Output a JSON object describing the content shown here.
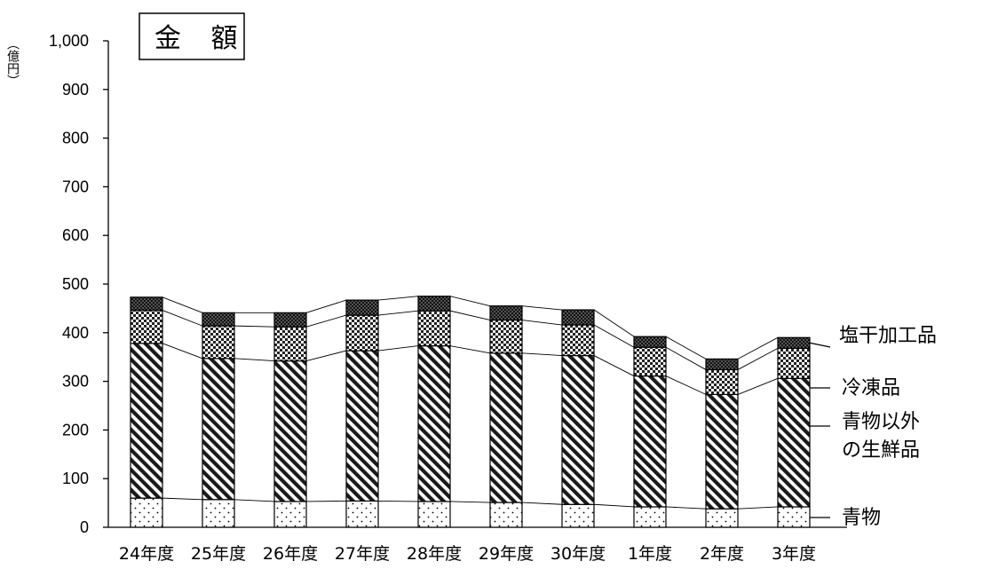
{
  "chart_data": {
    "type": "bar",
    "stacked": true,
    "title": "金 額",
    "ylabel": "（億円）",
    "ylim": [
      0,
      1000
    ],
    "ytick_step": 100,
    "ytick_labels": [
      "0",
      "100",
      "200",
      "300",
      "400",
      "500",
      "600",
      "700",
      "800",
      "900",
      "1,000"
    ],
    "categories": [
      "24年度",
      "25年度",
      "26年度",
      "27年度",
      "28年度",
      "29年度",
      "30年度",
      "1年度",
      "2年度",
      "3年度"
    ],
    "series": [
      {
        "name": "青物",
        "pattern": "dots",
        "values": [
          60,
          57,
          53,
          54,
          53,
          51,
          47,
          42,
          38,
          42
        ]
      },
      {
        "name": "青物以外の生鮮品",
        "legend_lines": [
          "青物以外",
          "の生鮮品"
        ],
        "pattern": "diagonal",
        "values": [
          318,
          290,
          289,
          309,
          320,
          307,
          306,
          269,
          235,
          264
        ]
      },
      {
        "name": "冷凍品",
        "pattern": "checker",
        "values": [
          68,
          67,
          70,
          73,
          72,
          68,
          63,
          59,
          51,
          62
        ]
      },
      {
        "name": "塩干加工品",
        "pattern": "dense-checker",
        "values": [
          27,
          27,
          29,
          31,
          30,
          29,
          31,
          22,
          22,
          22
        ]
      }
    ],
    "grid": false,
    "legend": "right, labels attached to last bar"
  }
}
